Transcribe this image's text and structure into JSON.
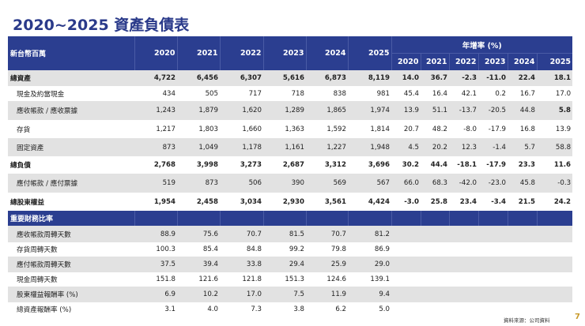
{
  "title": "2020~2025 資產負債表",
  "table": {
    "unit_label": "新台幣百萬",
    "years": [
      "2020",
      "2021",
      "2022",
      "2023",
      "2024",
      "2025"
    ],
    "growth_header": "年增率 (%)",
    "growth_years": [
      "2020",
      "2021",
      "2022",
      "2023",
      "2024",
      "2025"
    ],
    "rows": [
      {
        "label": "總資產",
        "bold": true,
        "values": [
          "4,722",
          "6,456",
          "6,307",
          "5,616",
          "6,873",
          "8,119"
        ],
        "growth": [
          "14.0",
          "36.7",
          "-2.3",
          "-11.0",
          "22.4",
          "18.1"
        ]
      },
      {
        "label": "現金及約當現金",
        "values": [
          "434",
          "505",
          "717",
          "718",
          "838",
          "981"
        ],
        "growth": [
          "45.4",
          "16.4",
          "42.1",
          "0.2",
          "16.7",
          "17.0"
        ]
      },
      {
        "label": "應收帳款 / 應收票據",
        "values": [
          "1,243",
          "1,879",
          "1,620",
          "1,289",
          "1,865",
          "1,974"
        ],
        "growth": [
          "13.9",
          "51.1",
          "-13.7",
          "-20.5",
          "44.8",
          "5.8"
        ]
      },
      {
        "label": "存貨",
        "values": [
          "1,217",
          "1,803",
          "1,660",
          "1,363",
          "1,592",
          "1,814"
        ],
        "growth": [
          "20.7",
          "48.2",
          "-8.0",
          "-17.9",
          "16.8",
          "13.9"
        ]
      },
      {
        "label": "固定資產",
        "values": [
          "873",
          "1,049",
          "1,178",
          "1,161",
          "1,227",
          "1,948"
        ],
        "growth": [
          "4.5",
          "20.2",
          "12.3",
          "-1.4",
          "5.7",
          "58.8"
        ]
      },
      {
        "label": "總負債",
        "bold": true,
        "values": [
          "2,768",
          "3,998",
          "3,273",
          "2,687",
          "3,312",
          "3,696"
        ],
        "growth": [
          "30.2",
          "44.4",
          "-18.1",
          "-17.9",
          "23.3",
          "11.6"
        ]
      },
      {
        "label": "應付帳款 / 應付票據",
        "values": [
          "519",
          "873",
          "506",
          "390",
          "569",
          "567"
        ],
        "growth": [
          "66.0",
          "68.3",
          "-42.0",
          "-23.0",
          "45.8",
          "-0.3"
        ]
      },
      {
        "label": "總股東權益",
        "bold": true,
        "values": [
          "1,954",
          "2,458",
          "3,034",
          "2,930",
          "3,561",
          "4,424"
        ],
        "growth": [
          "-3.0",
          "25.8",
          "23.4",
          "-3.4",
          "21.5",
          "24.2"
        ]
      }
    ],
    "ratios_header": "重要財務比率",
    "ratios": [
      {
        "label": "應收帳款周轉天數",
        "values": [
          "88.9",
          "75.6",
          "70.7",
          "81.5",
          "70.7",
          "81.2"
        ]
      },
      {
        "label": "存貨周轉天數",
        "values": [
          "100.3",
          "85.4",
          "84.8",
          "99.2",
          "79.8",
          "86.9"
        ]
      },
      {
        "label": "應付帳款周轉天數",
        "values": [
          "37.5",
          "39.4",
          "33.8",
          "29.4",
          "25.9",
          "29.0"
        ]
      },
      {
        "label": "現金周轉天數",
        "values": [
          "151.8",
          "121.6",
          "121.8",
          "151.3",
          "124.6",
          "139.1"
        ]
      },
      {
        "label": "股東權益報酬率 (%)",
        "values": [
          "6.9",
          "10.2",
          "17.0",
          "7.5",
          "11.9",
          "9.4"
        ]
      },
      {
        "label": "總資產報酬率 (%)",
        "values": [
          "3.1",
          "4.0",
          "7.3",
          "3.8",
          "6.2",
          "5.0"
        ]
      }
    ]
  },
  "footer": {
    "source": "資料來源：公司資料",
    "page": "7"
  },
  "colors": {
    "header": "#2b3e90",
    "row_alt": "#e2e2e2",
    "title": "#2a3a8a",
    "page_number": "#c89a2a"
  }
}
